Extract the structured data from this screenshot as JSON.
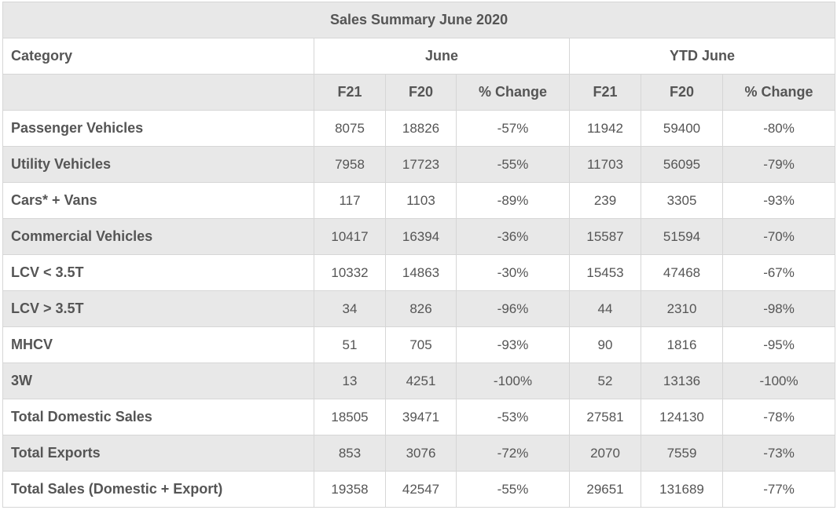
{
  "table": {
    "title": "Sales Summary June 2020",
    "header": {
      "category_label": "Category",
      "group1": "June",
      "group2": "YTD June",
      "sub_cols": [
        "F21",
        "F20",
        "% Change",
        "F21",
        "F20",
        "% Change"
      ]
    },
    "rows": [
      {
        "label": "Passenger Vehicles",
        "values": [
          "8075",
          "18826",
          "-57%",
          "11942",
          "59400",
          "-80%"
        ]
      },
      {
        "label": "Utility Vehicles",
        "values": [
          "7958",
          "17723",
          "-55%",
          "11703",
          "56095",
          "-79%"
        ]
      },
      {
        "label": "Cars* + Vans",
        "values": [
          "117",
          "1103",
          "-89%",
          "239",
          "3305",
          "-93%"
        ]
      },
      {
        "label": "Commercial Vehicles",
        "values": [
          "10417",
          "16394",
          "-36%",
          "15587",
          "51594",
          "-70%"
        ]
      },
      {
        "label": "LCV < 3.5T",
        "values": [
          "10332",
          "14863",
          "-30%",
          "15453",
          "47468",
          "-67%"
        ]
      },
      {
        "label": "LCV > 3.5T",
        "values": [
          "34",
          "826",
          "-96%",
          "44",
          "2310",
          "-98%"
        ]
      },
      {
        "label": "MHCV",
        "values": [
          "51",
          "705",
          "-93%",
          "90",
          "1816",
          "-95%"
        ]
      },
      {
        "label": "3W",
        "values": [
          "13",
          "4251",
          "-100%",
          "52",
          "13136",
          "-100%"
        ]
      },
      {
        "label": "Total Domestic Sales",
        "values": [
          "18505",
          "39471",
          "-53%",
          "27581",
          "124130",
          "-78%"
        ]
      },
      {
        "label": "Total Exports",
        "values": [
          "853",
          "3076",
          "-72%",
          "2070",
          "7559",
          "-73%"
        ]
      },
      {
        "label": "Total Sales (Domestic + Export)",
        "values": [
          "19358",
          "42547",
          "-55%",
          "29651",
          "131689",
          "-77%"
        ]
      }
    ]
  }
}
